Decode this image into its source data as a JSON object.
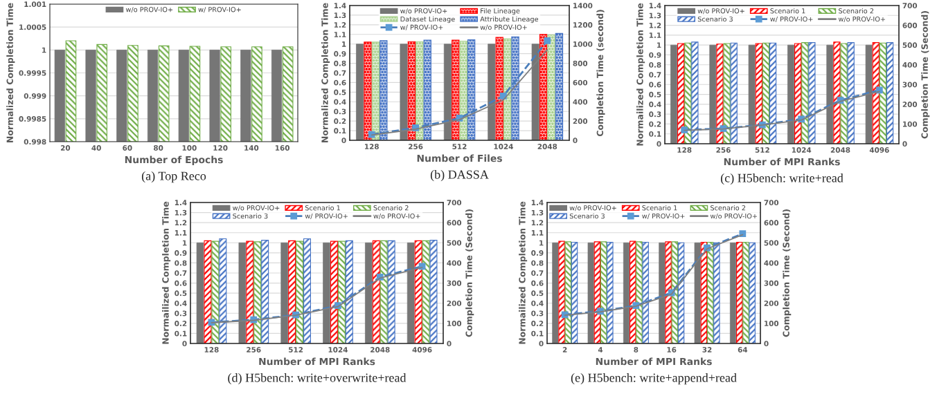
{
  "chart_data": [
    {
      "type": "bar",
      "xlabel": "Number of Epochs",
      "ylabel": "Normalized Completion Time",
      "categories": [
        "20",
        "40",
        "60",
        "80",
        "100",
        "120",
        "140",
        "160"
      ],
      "ylim": [
        0.998,
        1.001
      ],
      "yticks": [
        0.998,
        0.9985,
        0.999,
        0.9995,
        1,
        1.0005,
        1.001
      ],
      "grid": "y",
      "legend": "top",
      "annotations": [
        "(a) Top Reco"
      ],
      "series": [
        {
          "name": "w/o PROV-IO+",
          "color": "#767676",
          "values": [
            1,
            1,
            1,
            1,
            1,
            1,
            1,
            1
          ]
        },
        {
          "name": "w/ PROV-IO+",
          "color": "#70ad47",
          "values": [
            1.0002,
            1.00012,
            1.0001,
            1.00009,
            1.00008,
            1.00007,
            1.00007,
            1.00007
          ]
        }
      ]
    },
    {
      "type": "bar",
      "xlabel": "Number of Files",
      "ylabel": "Normalized Completion Time",
      "y2label": "Completion Time (second)",
      "categories": [
        "128",
        "256",
        "512",
        "1024",
        "2048"
      ],
      "ylim": [
        0,
        1.4
      ],
      "yticks": [
        0,
        0.1,
        0.2,
        0.3,
        0.4,
        0.5,
        0.6,
        0.7,
        0.8,
        0.9,
        1,
        1.1,
        1.2,
        1.3,
        1.4
      ],
      "y2lim": [
        0,
        1400
      ],
      "y2ticks": [
        0,
        200,
        400,
        600,
        800,
        1000,
        1200,
        1400
      ],
      "grid": "y",
      "legend": "top",
      "annotations": [
        "(b) DASSA"
      ],
      "series": [
        {
          "name": "w/o PROV-IO+",
          "color": "#767676",
          "values": [
            1,
            1,
            1,
            1,
            1
          ]
        },
        {
          "name": "File Lineage",
          "color": "#ff0000",
          "values": [
            1.02,
            1.025,
            1.04,
            1.07,
            1.1
          ]
        },
        {
          "name": "Dataset Lineage",
          "color": "#a9d18e",
          "values": [
            1.02,
            1.025,
            1.03,
            1.055,
            1.095
          ]
        },
        {
          "name": "Attribute Lineage",
          "color": "#4472c4",
          "values": [
            1.035,
            1.04,
            1.045,
            1.075,
            1.11
          ]
        },
        {
          "name": "w/ PROV-IO+",
          "type": "line",
          "axis": "y2",
          "color": "#4a7ebb",
          "line_style": "dashed",
          "marker": "square",
          "values": [
            60,
            130,
            230,
            460,
            1035
          ]
        },
        {
          "name": "w/o PROV-IO+",
          "type": "line",
          "axis": "y2",
          "color": "#7f7f7f",
          "line_style": "solid",
          "marker": "none",
          "values": [
            55,
            115,
            215,
            420,
            940
          ]
        }
      ]
    },
    {
      "type": "bar",
      "xlabel": "Number of MPI Ranks",
      "ylabel": "Normailized Completion Time",
      "y2label": "Completion Time (Second)",
      "categories": [
        "128",
        "256",
        "512",
        "1024",
        "2048",
        "4096"
      ],
      "ylim": [
        0,
        1.4
      ],
      "yticks": [
        0,
        0.1,
        0.2,
        0.3,
        0.4,
        0.5,
        0.6,
        0.7,
        0.8,
        0.9,
        1,
        1.1,
        1.2,
        1.3,
        1.4
      ],
      "y2lim": [
        0,
        700
      ],
      "y2ticks": [
        0,
        100,
        200,
        300,
        400,
        500,
        600,
        700
      ],
      "grid": "y",
      "legend": "top",
      "annotations": [
        "(c) H5bench: write+read"
      ],
      "series": [
        {
          "name": "w/o PROV-IO+",
          "color": "#767676",
          "values": [
            1,
            1,
            1,
            1,
            1,
            1
          ]
        },
        {
          "name": "Scenario 1",
          "color": "#ff0000",
          "values": [
            1.015,
            1.01,
            1.015,
            1.015,
            1.03,
            1.025
          ]
        },
        {
          "name": "Scenario 2",
          "color": "#70ad47",
          "values": [
            1.02,
            1.015,
            1.02,
            1.025,
            1.015,
            1.02
          ]
        },
        {
          "name": "Scenario 3",
          "color": "#4472c4",
          "values": [
            1.03,
            1.02,
            1.02,
            1.025,
            1.025,
            1.025
          ]
        },
        {
          "name": "w/ PROV-IO+",
          "type": "line",
          "axis": "y2",
          "color": "#4a7ebb",
          "line_style": "dashed",
          "marker": "square",
          "values": [
            70,
            77,
            96,
            125,
            220,
            272
          ]
        },
        {
          "name": "w/o PROV-IO+",
          "type": "line",
          "axis": "y2",
          "color": "#7f7f7f",
          "line_style": "solid",
          "marker": "none",
          "values": [
            68,
            75,
            95,
            120,
            215,
            265
          ]
        }
      ]
    },
    {
      "type": "bar",
      "xlabel": "Number of MPI Ranks",
      "ylabel": "Normailized Completion Time",
      "y2label": "Completion Time (Second)",
      "categories": [
        "128",
        "256",
        "512",
        "1024",
        "2048",
        "4096"
      ],
      "ylim": [
        0,
        1.4
      ],
      "yticks": [
        0,
        0.1,
        0.2,
        0.3,
        0.4,
        0.5,
        0.6,
        0.7,
        0.8,
        0.9,
        1,
        1.1,
        1.2,
        1.3,
        1.4
      ],
      "y2lim": [
        0,
        700
      ],
      "y2ticks": [
        0,
        100,
        200,
        300,
        400,
        500,
        600,
        700
      ],
      "grid": "y",
      "legend": "top",
      "annotations": [
        "(d) H5bench: write+overwrite+read"
      ],
      "series": [
        {
          "name": "w/o PROV-IO+",
          "color": "#767676",
          "values": [
            1,
            1,
            1,
            1,
            1,
            1
          ]
        },
        {
          "name": "Scenario 1",
          "color": "#ff0000",
          "values": [
            1.02,
            1.015,
            1.02,
            1.015,
            1.02,
            1.02
          ]
        },
        {
          "name": "Scenario 2",
          "color": "#70ad47",
          "values": [
            1.015,
            1.01,
            1.015,
            1.015,
            1.02,
            1.02
          ]
        },
        {
          "name": "Scenario 3",
          "color": "#4472c4",
          "values": [
            1.04,
            1.025,
            1.04,
            1.02,
            1.02,
            1.025
          ]
        },
        {
          "name": "w/ PROV-IO+",
          "type": "line",
          "axis": "y2",
          "color": "#4a7ebb",
          "line_style": "dashed",
          "marker": "square",
          "values": [
            105,
            118,
            142,
            188,
            330,
            383
          ]
        },
        {
          "name": "w/o PROV-IO+",
          "type": "line",
          "axis": "y2",
          "color": "#7f7f7f",
          "line_style": "solid",
          "marker": "none",
          "values": [
            103,
            115,
            140,
            183,
            325,
            378
          ]
        }
      ]
    },
    {
      "type": "bar",
      "xlabel": "Number of MPI Ranks",
      "ylabel": "Normailized Completion Time",
      "y2label": "Completion Time (Second)",
      "categories": [
        "2",
        "4",
        "8",
        "16",
        "32",
        "64"
      ],
      "ylim": [
        0,
        1.4
      ],
      "yticks": [
        0,
        0.1,
        0.2,
        0.3,
        0.4,
        0.5,
        0.6,
        0.7,
        0.8,
        0.9,
        1,
        1.1,
        1.2,
        1.3,
        1.4
      ],
      "y2lim": [
        0,
        700
      ],
      "y2ticks": [
        0,
        100,
        200,
        300,
        400,
        500,
        600,
        700
      ],
      "grid": "y",
      "legend": "top",
      "annotations": [
        "(e) H5bench: write+append+read"
      ],
      "series": [
        {
          "name": "w/o PROV-IO+",
          "color": "#767676",
          "values": [
            1,
            1,
            1,
            1,
            1,
            1
          ]
        },
        {
          "name": "Scenario 1",
          "color": "#ff0000",
          "values": [
            1.015,
            1.01,
            1.015,
            1.01,
            1.005,
            1.005
          ]
        },
        {
          "name": "Scenario 2",
          "color": "#70ad47",
          "values": [
            1.01,
            1.01,
            1.01,
            1.01,
            1.005,
            1.005
          ]
        },
        {
          "name": "Scenario 3",
          "color": "#4472c4",
          "values": [
            1.005,
            1.005,
            1.005,
            1.0,
            1.0,
            1.0
          ]
        },
        {
          "name": "w/ PROV-IO+",
          "type": "line",
          "axis": "y2",
          "color": "#4a7ebb",
          "line_style": "dashed",
          "marker": "square",
          "values": [
            143,
            160,
            188,
            252,
            475,
            545
          ]
        },
        {
          "name": "w/o PROV-IO+",
          "type": "line",
          "axis": "y2",
          "color": "#7f7f7f",
          "line_style": "solid",
          "marker": "none",
          "values": [
            140,
            157,
            185,
            245,
            470,
            540
          ]
        }
      ]
    }
  ]
}
